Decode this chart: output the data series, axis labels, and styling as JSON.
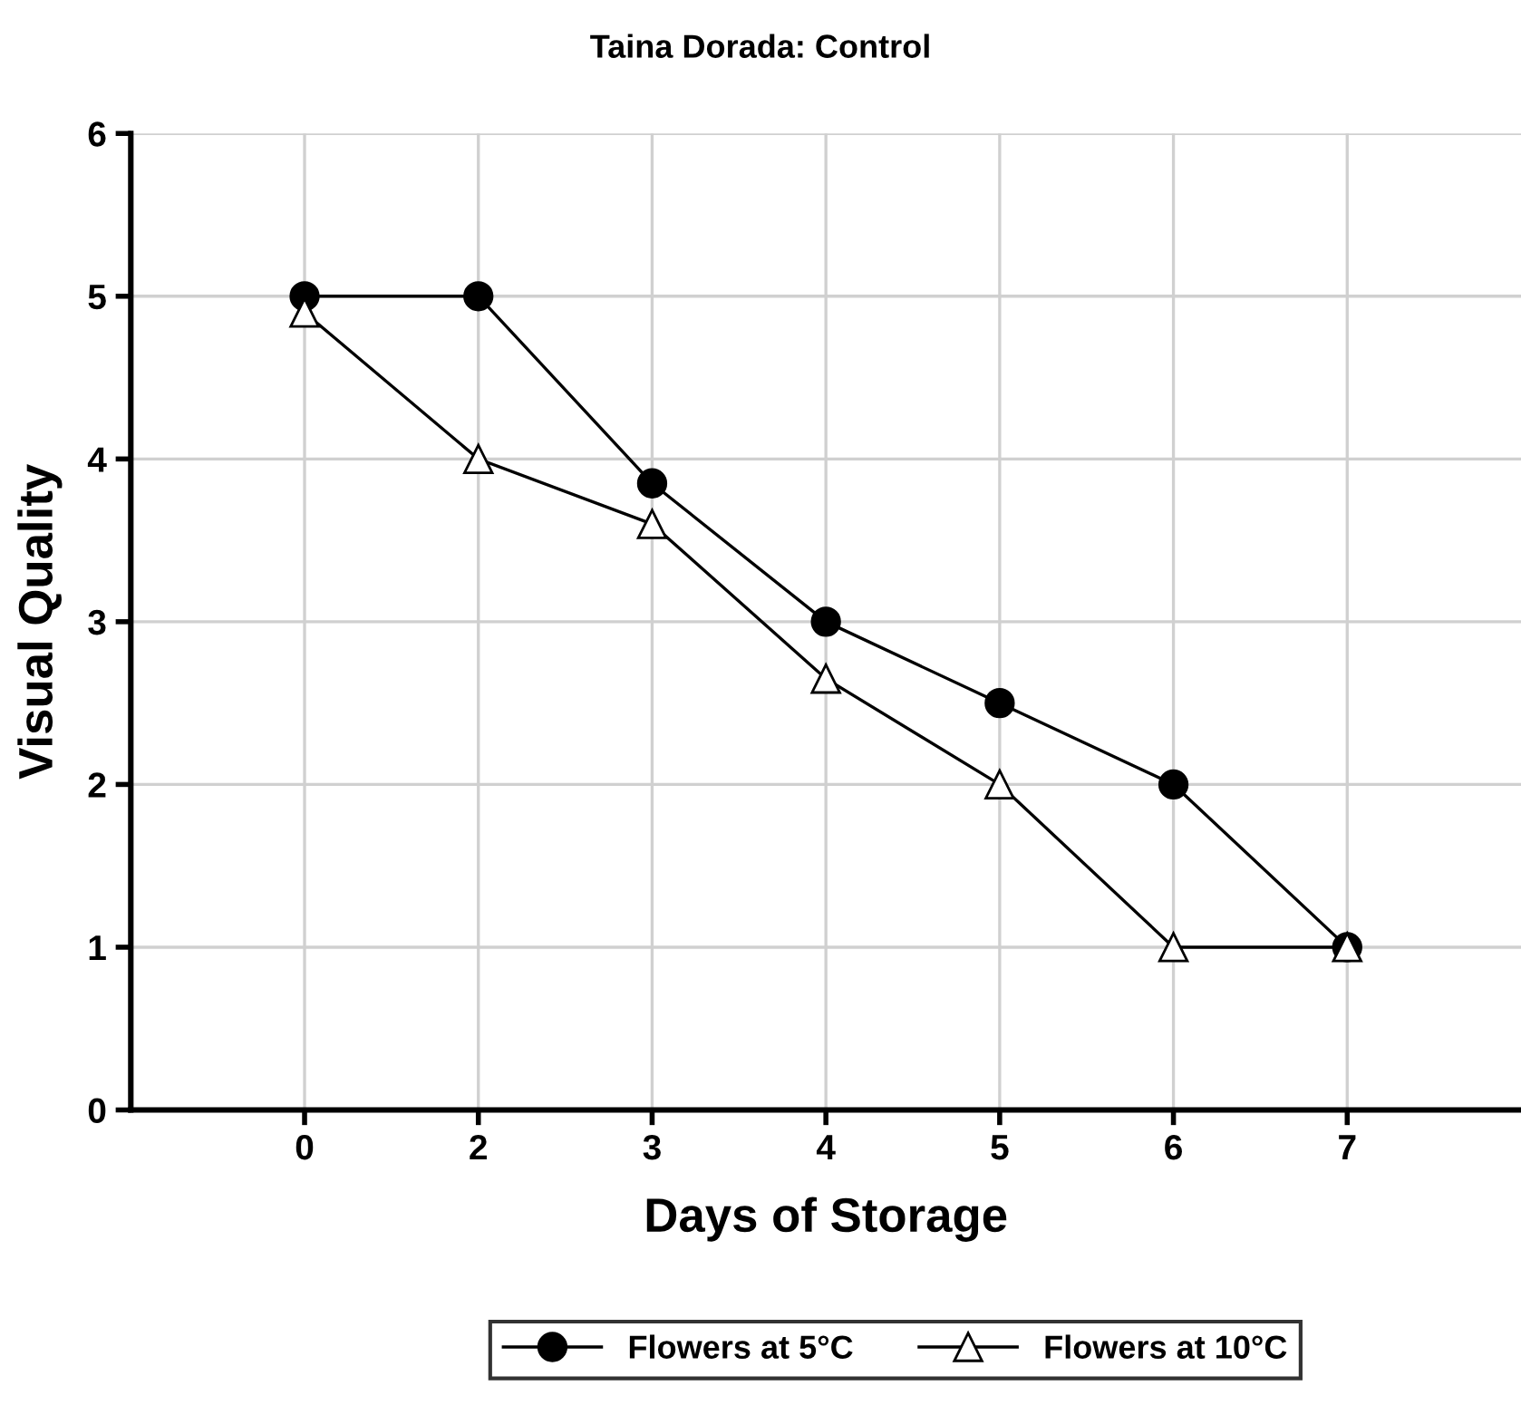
{
  "chart_data": {
    "type": "line",
    "title": "Taina Dorada: Control",
    "xlabel": "Days of Storage",
    "ylabel": "Visual Quality",
    "categories": [
      "0",
      "2",
      "3",
      "4",
      "5",
      "6",
      "7"
    ],
    "series": [
      {
        "name": "Flowers at 5°C",
        "color": "#000000",
        "marker": "circle",
        "values": [
          5,
          5,
          3.85,
          3,
          2.5,
          2,
          1
        ]
      },
      {
        "name": "Flowers at 10°C",
        "color": "#000000",
        "marker": "triangle",
        "values": [
          4.9,
          4,
          3.6,
          2.65,
          2,
          1,
          1
        ]
      }
    ],
    "ylim": [
      0,
      6
    ],
    "yticks": [
      0,
      1,
      2,
      3,
      4,
      5,
      6
    ],
    "grid": true,
    "legend": "bottom",
    "line_style": "solid"
  }
}
